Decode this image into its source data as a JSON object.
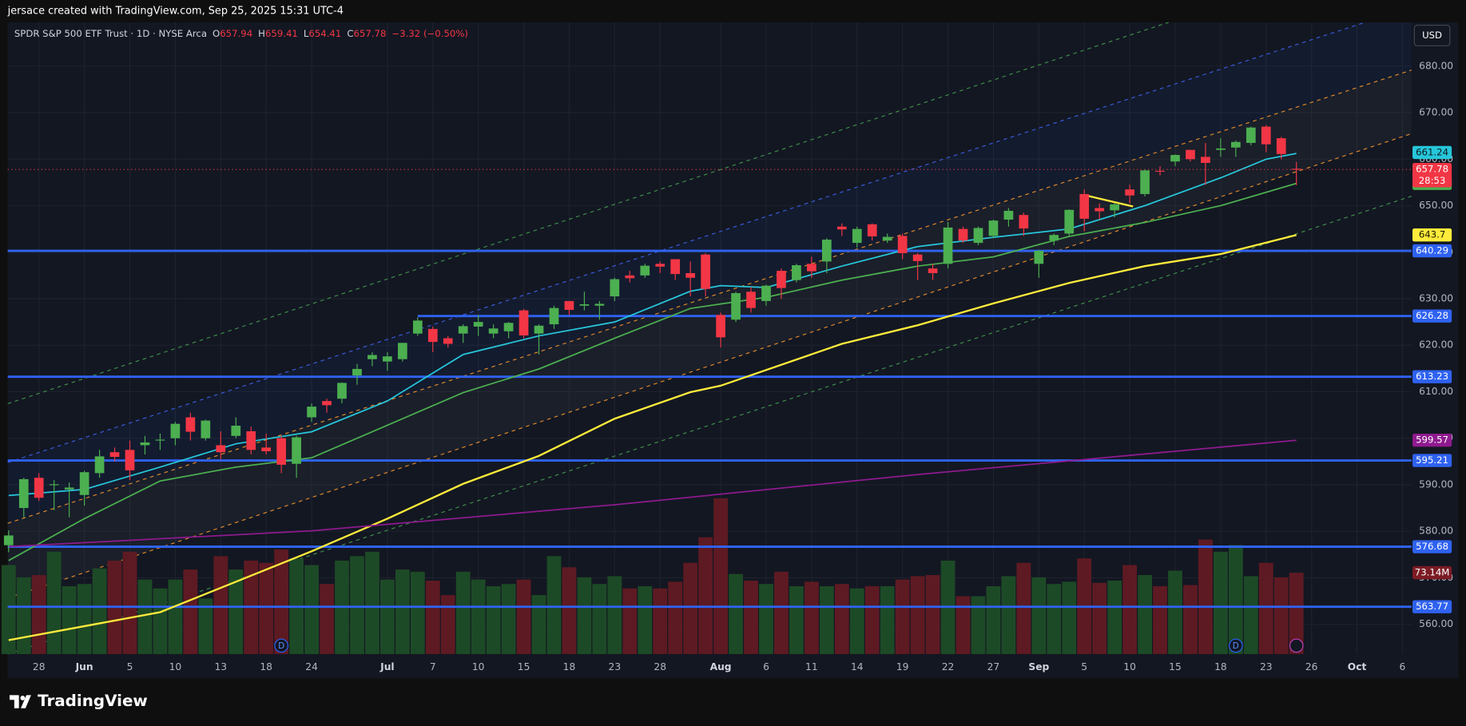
{
  "header": {
    "credit": "jersace created with TradingView.com, Sep 25, 2025 15:31 UTC-4",
    "brand": "TradingView"
  },
  "chart_data": {
    "type": "candlestick",
    "title": "SPDR S&P 500 ETF Trust · 1D · NYSE Arca",
    "ohlc_labels": [
      "O",
      "H",
      "L",
      "C"
    ],
    "change": "−3.32 (−0.50%)",
    "currency": "USD",
    "countdown": "28:53",
    "xlim": [
      -0.06,
      92.6
    ],
    "ylim": [
      553.6,
      689.4
    ],
    "xticks": [
      {
        "value": 2,
        "label": "28"
      },
      {
        "value": 5,
        "label": "Jun"
      },
      {
        "value": 8,
        "label": "5"
      },
      {
        "value": 11,
        "label": "10"
      },
      {
        "value": 14,
        "label": "13"
      },
      {
        "value": 17,
        "label": "18"
      },
      {
        "value": 20,
        "label": "24"
      },
      {
        "value": 25,
        "label": "Jul"
      },
      {
        "value": 28,
        "label": "7"
      },
      {
        "value": 31,
        "label": "10"
      },
      {
        "value": 34,
        "label": "15"
      },
      {
        "value": 37,
        "label": "18"
      },
      {
        "value": 40,
        "label": "23"
      },
      {
        "value": 43,
        "label": "28"
      },
      {
        "value": 47,
        "label": "Aug"
      },
      {
        "value": 50,
        "label": "6"
      },
      {
        "value": 53,
        "label": "11"
      },
      {
        "value": 56,
        "label": "14"
      },
      {
        "value": 59,
        "label": "19"
      },
      {
        "value": 62,
        "label": "22"
      },
      {
        "value": 65,
        "label": "27"
      },
      {
        "value": 68,
        "label": "Sep"
      },
      {
        "value": 71,
        "label": "5"
      },
      {
        "value": 74,
        "label": "10"
      },
      {
        "value": 77,
        "label": "15"
      },
      {
        "value": 80,
        "label": "18"
      },
      {
        "value": 83,
        "label": "23"
      },
      {
        "value": 86,
        "label": "26"
      },
      {
        "value": 89,
        "label": "Oct"
      },
      {
        "value": 92,
        "label": "6"
      }
    ],
    "month_ticks": [
      "Jun",
      "Jul",
      "Aug",
      "Sep",
      "Oct"
    ],
    "yticks": [
      {
        "value": 560,
        "label": "560.00"
      },
      {
        "value": 570,
        "label": "570.00"
      },
      {
        "value": 580,
        "label": "580.00"
      },
      {
        "value": 590,
        "label": "590.00"
      },
      {
        "value": 600,
        "label": "600.00"
      },
      {
        "value": 610,
        "label": "610.00"
      },
      {
        "value": 620,
        "label": "620.00"
      },
      {
        "value": 630,
        "label": "630.00"
      },
      {
        "value": 640,
        "label": "640.00"
      },
      {
        "value": 650,
        "label": "650.00"
      },
      {
        "value": 660,
        "label": "660.00"
      },
      {
        "value": 670,
        "label": "670.00"
      },
      {
        "value": 680,
        "label": "680.00"
      }
    ],
    "grid": true,
    "up_color": "#4caf50",
    "down_color": "#f23645",
    "volume_up_color": "#1d4a26",
    "volume_down_color": "#5e1a22",
    "open": [
      577.0,
      585.0,
      591.5,
      590.0,
      589.0,
      587.8,
      592.5,
      597.0,
      597.5,
      598.5,
      599.5,
      600.0,
      604.5,
      600.0,
      598.5,
      600.5,
      601.5,
      598.0,
      600.0,
      594.5,
      604.5,
      608.0,
      608.5,
      613.5,
      617.0,
      616.5,
      617.0,
      622.5,
      623.5,
      621.5,
      622.5,
      624.0,
      622.5,
      623.0,
      627.5,
      622.5,
      624.5,
      629.5,
      628.5,
      628.5,
      630.5,
      635.0,
      635.0,
      637.5,
      638.5,
      635.5,
      639.5,
      626.5,
      625.5,
      631.5,
      629.5,
      636.0,
      634.0,
      637.5,
      638.0,
      645.5,
      642.0,
      646.0,
      642.5,
      643.5,
      639.5,
      636.5,
      637.5,
      645.0,
      642.0,
      643.5,
      647.0,
      648.0,
      637.5,
      642.5,
      644.0,
      652.5,
      649.5,
      649.0,
      653.5,
      652.5,
      657.5,
      659.5,
      662.0,
      660.5,
      662.0,
      662.5,
      663.5,
      667.0,
      664.5,
      657.94
    ],
    "high": [
      580.2,
      591.5,
      592.5,
      591.0,
      590.5,
      593.0,
      597.5,
      598.0,
      599.5,
      600.5,
      601.0,
      603.5,
      605.5,
      604.0,
      601.5,
      604.5,
      602.5,
      601.0,
      600.5,
      600.5,
      607.5,
      608.5,
      612.0,
      616.0,
      618.5,
      618.5,
      620.5,
      626.0,
      624.0,
      622.0,
      624.5,
      626.5,
      624.5,
      625.0,
      627.8,
      624.5,
      628.5,
      629.5,
      631.5,
      629.5,
      634.5,
      636.0,
      637.5,
      638.0,
      638.5,
      638.0,
      639.8,
      627.0,
      631.5,
      632.5,
      633.0,
      636.5,
      637.5,
      639.0,
      643.0,
      646.2,
      645.5,
      646.2,
      644.0,
      644.0,
      639.8,
      637.5,
      646.5,
      645.5,
      645.5,
      647.0,
      649.5,
      648.5,
      640.5,
      644.0,
      649.2,
      653.5,
      650.5,
      650.5,
      654.5,
      657.8,
      658.5,
      661.0,
      662.0,
      663.5,
      664.5,
      664.0,
      667.0,
      667.3,
      664.8,
      659.41
    ],
    "low": [
      575.5,
      583.0,
      586.5,
      584.5,
      583.0,
      585.5,
      591.5,
      595.0,
      591.0,
      596.5,
      597.5,
      598.5,
      599.5,
      599.5,
      595.5,
      600.0,
      596.5,
      596.5,
      592.5,
      591.5,
      603.5,
      605.5,
      607.5,
      611.5,
      615.5,
      614.5,
      616.5,
      622.0,
      618.5,
      619.5,
      620.5,
      622.0,
      621.5,
      621.5,
      621.5,
      618.0,
      623.5,
      626.5,
      627.5,
      625.5,
      629.5,
      633.5,
      634.5,
      635.5,
      634.0,
      630.5,
      630.5,
      619.5,
      625.0,
      627.0,
      628.5,
      630.0,
      633.5,
      634.5,
      635.5,
      643.5,
      641.0,
      642.5,
      642.0,
      638.5,
      634.0,
      634.0,
      636.5,
      642.0,
      641.5,
      643.0,
      645.5,
      643.5,
      634.5,
      641.5,
      643.5,
      644.5,
      647.0,
      647.5,
      650.5,
      652.0,
      656.5,
      658.5,
      659.5,
      654.5,
      660.5,
      660.5,
      663.0,
      661.5,
      660.0,
      654.41
    ],
    "close": [
      579.1,
      591.2,
      587.2,
      590.1,
      589.4,
      592.7,
      596.1,
      596.0,
      593.1,
      599.1,
      599.7,
      603.1,
      601.4,
      603.8,
      597.0,
      602.7,
      597.5,
      597.2,
      594.3,
      600.2,
      606.8,
      607.1,
      611.9,
      614.9,
      617.9,
      617.6,
      620.5,
      625.3,
      620.7,
      620.3,
      624.1,
      625.0,
      623.6,
      624.8,
      622.1,
      624.2,
      628.0,
      627.6,
      628.8,
      628.9,
      634.2,
      634.4,
      637.1,
      636.9,
      635.3,
      634.5,
      632.1,
      621.7,
      631.2,
      628.0,
      632.8,
      632.3,
      637.2,
      635.9,
      642.7,
      644.9,
      645.0,
      643.4,
      643.3,
      639.8,
      638.1,
      635.5,
      645.3,
      642.5,
      645.2,
      646.8,
      648.9,
      645.1,
      640.3,
      643.7,
      649.1,
      647.2,
      648.8,
      650.3,
      652.2,
      657.6,
      657.4,
      660.9,
      660.0,
      659.2,
      662.3,
      663.7,
      666.8,
      663.2,
      661.1,
      657.78
    ],
    "volume": [
      80,
      69,
      71,
      92,
      61,
      63,
      77,
      84,
      92,
      67,
      59,
      67,
      76,
      50,
      88,
      76,
      84,
      82,
      94,
      86,
      80,
      63,
      84,
      88,
      92,
      67,
      76,
      74,
      66,
      53,
      74,
      67,
      61,
      63,
      67,
      53,
      88,
      78,
      69,
      63,
      70,
      59,
      61,
      59,
      65,
      82,
      105,
      140,
      72,
      66,
      63,
      74,
      61,
      65,
      61,
      63,
      59,
      61,
      61,
      67,
      70,
      71,
      84,
      52,
      52,
      61,
      70,
      82,
      69,
      63,
      65,
      86,
      64,
      66,
      80,
      71,
      61,
      75,
      62,
      103,
      92,
      98,
      70,
      82,
      69,
      73.14
    ],
    "volume_ylim": [
      0,
      147
    ],
    "volume_last_label": "73.14M",
    "series": [
      {
        "color": "#26c6da",
        "label_text_color": "#0b1a1e",
        "x": [
          0,
          5,
          10,
          15,
          20,
          25,
          28,
          30,
          35,
          40,
          45,
          47,
          50,
          55,
          60,
          65,
          70,
          75,
          80,
          83,
          85
        ],
        "values": [
          587.7,
          589.0,
          593.8,
          598.8,
          601.4,
          608.0,
          614.0,
          618.0,
          622.0,
          625.0,
          631.6,
          632.8,
          632.4,
          637.0,
          641.2,
          643.2,
          645.0,
          650.0,
          656.0,
          660.0,
          661.24
        ]
      },
      {
        "color": "#4caf50",
        "label_text_color": "#0b1a0e",
        "x": [
          0,
          5,
          10,
          15,
          20,
          25,
          30,
          35,
          40,
          45,
          50,
          55,
          60,
          65,
          70,
          75,
          80,
          85
        ],
        "values": [
          573.7,
          582.7,
          590.8,
          593.8,
          595.8,
          602.8,
          609.8,
          614.9,
          621.5,
          627.9,
          630.3,
          634.0,
          637.0,
          639.0,
          643.4,
          646.4,
          650.0,
          654.79
        ]
      },
      {
        "color": "#ffeb3b",
        "label_text_color": "#1a1a00",
        "x": [
          0,
          10,
          20,
          25,
          30,
          35,
          40,
          45,
          47,
          55,
          60,
          65,
          70,
          75,
          80,
          85
        ],
        "values": [
          556.6,
          562.6,
          575.7,
          582.7,
          590.2,
          596.2,
          604.2,
          609.9,
          611.3,
          620.3,
          624.3,
          629.0,
          633.4,
          637.0,
          639.6,
          643.7
        ]
      },
      {
        "color": "#8e1a8e",
        "label_text_color": "#ffffff",
        "x": [
          0,
          20,
          40,
          60,
          85
        ],
        "values": [
          576.7,
          580.1,
          585.7,
          592.2,
          599.57
        ]
      }
    ],
    "levels": [
      {
        "value": 640.29
      },
      {
        "value": 626.28,
        "x0": 27
      },
      {
        "value": 613.23
      },
      {
        "value": 595.21
      },
      {
        "value": 576.68
      },
      {
        "value": 563.77
      }
    ],
    "level_color": "#2f62f0",
    "markers": [
      {
        "x": 18,
        "label": "D"
      },
      {
        "x": 81,
        "label": "D"
      }
    ]
  }
}
